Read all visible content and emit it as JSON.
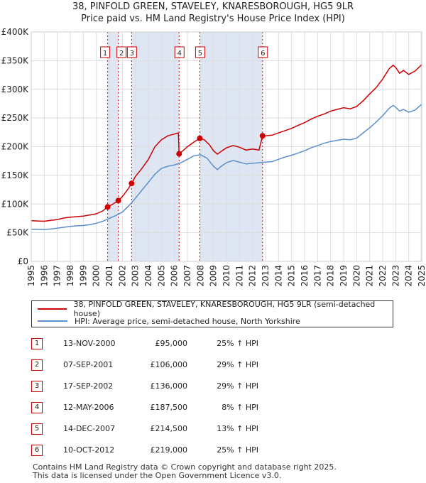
{
  "title_line1": "38, PINFOLD GREEN, STAVELEY, KNARESBOROUGH, HG5 9LR",
  "title_line2": "Price paid vs. HM Land Registry's House Price Index (HPI)",
  "colors": {
    "property": "#cc0000",
    "hpi": "#5b8fce",
    "shade": "#dfe6f3",
    "grid": "#dddddd",
    "marker_line": "#cc0000"
  },
  "chart_data": {
    "type": "line",
    "xlim": [
      1995,
      2025
    ],
    "ylim": [
      0,
      400000
    ],
    "y_ticks": [
      {
        "value": 0,
        "label": "£0"
      },
      {
        "value": 50000,
        "label": "£50K"
      },
      {
        "value": 100000,
        "label": "£100K"
      },
      {
        "value": 150000,
        "label": "£150K"
      },
      {
        "value": 200000,
        "label": "£200K"
      },
      {
        "value": 250000,
        "label": "£250K"
      },
      {
        "value": 300000,
        "label": "£300K"
      },
      {
        "value": 350000,
        "label": "£350K"
      },
      {
        "value": 400000,
        "label": "£400K"
      }
    ],
    "x_ticks": [
      1995,
      1996,
      1997,
      1998,
      1999,
      2000,
      2001,
      2002,
      2003,
      2004,
      2005,
      2006,
      2007,
      2008,
      2009,
      2010,
      2011,
      2012,
      2013,
      2014,
      2015,
      2016,
      2017,
      2018,
      2019,
      2020,
      2021,
      2022,
      2023,
      2024,
      2025
    ],
    "shaded_ranges": [
      [
        2000.87,
        2001.69
      ],
      [
        2002.71,
        2006.36
      ],
      [
        2007.95,
        2012.77
      ],
      [
        2024.92,
        2025.0
      ]
    ],
    "series": [
      {
        "name": "38, PINFOLD GREEN, STAVELEY, KNARESBOROUGH, HG5 9LR (semi-detached house)",
        "color": "#cc0000",
        "points": [
          [
            1995.0,
            71000
          ],
          [
            1995.5,
            70500
          ],
          [
            1996.0,
            70000
          ],
          [
            1996.5,
            71500
          ],
          [
            1997.0,
            73000
          ],
          [
            1997.5,
            75500
          ],
          [
            1998.0,
            77000
          ],
          [
            1998.5,
            78000
          ],
          [
            1999.0,
            79000
          ],
          [
            1999.5,
            81000
          ],
          [
            2000.0,
            83000
          ],
          [
            2000.5,
            88000
          ],
          [
            2000.87,
            95000
          ],
          [
            2001.2,
            99000
          ],
          [
            2001.69,
            106000
          ],
          [
            2002.0,
            113000
          ],
          [
            2002.4,
            125000
          ],
          [
            2002.71,
            136000
          ],
          [
            2003.0,
            148000
          ],
          [
            2003.5,
            162000
          ],
          [
            2004.0,
            178000
          ],
          [
            2004.5,
            200000
          ],
          [
            2005.0,
            212000
          ],
          [
            2005.5,
            219000
          ],
          [
            2006.0,
            222000
          ],
          [
            2006.3,
            224000
          ],
          [
            2006.36,
            187500
          ],
          [
            2006.6,
            192000
          ],
          [
            2007.0,
            200000
          ],
          [
            2007.5,
            208000
          ],
          [
            2007.95,
            214500
          ],
          [
            2008.3,
            212000
          ],
          [
            2008.7,
            203000
          ],
          [
            2009.0,
            193000
          ],
          [
            2009.3,
            187000
          ],
          [
            2009.6,
            192000
          ],
          [
            2010.0,
            198000
          ],
          [
            2010.5,
            202000
          ],
          [
            2011.0,
            199000
          ],
          [
            2011.5,
            194000
          ],
          [
            2012.0,
            196000
          ],
          [
            2012.5,
            194000
          ],
          [
            2012.77,
            219000
          ],
          [
            2013.0,
            219000
          ],
          [
            2013.5,
            220000
          ],
          [
            2014.0,
            224000
          ],
          [
            2014.5,
            228000
          ],
          [
            2015.0,
            232000
          ],
          [
            2015.5,
            237000
          ],
          [
            2016.0,
            242000
          ],
          [
            2016.5,
            248000
          ],
          [
            2017.0,
            253000
          ],
          [
            2017.5,
            257000
          ],
          [
            2018.0,
            262000
          ],
          [
            2018.5,
            265000
          ],
          [
            2019.0,
            268000
          ],
          [
            2019.5,
            266000
          ],
          [
            2020.0,
            270000
          ],
          [
            2020.5,
            280000
          ],
          [
            2021.0,
            292000
          ],
          [
            2021.5,
            303000
          ],
          [
            2022.0,
            318000
          ],
          [
            2022.5,
            336000
          ],
          [
            2022.8,
            342000
          ],
          [
            2023.0,
            338000
          ],
          [
            2023.3,
            328000
          ],
          [
            2023.6,
            333000
          ],
          [
            2024.0,
            326000
          ],
          [
            2024.5,
            332000
          ],
          [
            2025.0,
            343000
          ]
        ]
      },
      {
        "name": "HPI: Average price, semi-detached house, North Yorkshire",
        "color": "#5b8fce",
        "points": [
          [
            1995.0,
            56000
          ],
          [
            1995.5,
            55800
          ],
          [
            1996.0,
            55500
          ],
          [
            1996.5,
            56500
          ],
          [
            1997.0,
            58000
          ],
          [
            1997.5,
            59500
          ],
          [
            1998.0,
            61000
          ],
          [
            1998.5,
            62000
          ],
          [
            1999.0,
            62500
          ],
          [
            1999.5,
            64000
          ],
          [
            2000.0,
            66500
          ],
          [
            2000.5,
            70000
          ],
          [
            2001.0,
            75000
          ],
          [
            2001.5,
            80000
          ],
          [
            2002.0,
            86000
          ],
          [
            2002.5,
            97000
          ],
          [
            2003.0,
            110000
          ],
          [
            2003.5,
            124000
          ],
          [
            2004.0,
            138000
          ],
          [
            2004.5,
            152000
          ],
          [
            2005.0,
            162000
          ],
          [
            2005.5,
            166000
          ],
          [
            2006.0,
            168000
          ],
          [
            2006.5,
            172000
          ],
          [
            2007.0,
            178000
          ],
          [
            2007.5,
            184000
          ],
          [
            2008.0,
            186000
          ],
          [
            2008.5,
            180000
          ],
          [
            2009.0,
            166000
          ],
          [
            2009.3,
            160000
          ],
          [
            2009.6,
            166000
          ],
          [
            2010.0,
            172000
          ],
          [
            2010.5,
            176000
          ],
          [
            2011.0,
            173000
          ],
          [
            2011.5,
            170000
          ],
          [
            2012.0,
            171000
          ],
          [
            2012.5,
            172000
          ],
          [
            2013.0,
            173000
          ],
          [
            2013.5,
            174000
          ],
          [
            2014.0,
            178000
          ],
          [
            2014.5,
            182000
          ],
          [
            2015.0,
            185000
          ],
          [
            2015.5,
            189000
          ],
          [
            2016.0,
            193000
          ],
          [
            2016.5,
            198000
          ],
          [
            2017.0,
            202000
          ],
          [
            2017.5,
            206000
          ],
          [
            2018.0,
            209000
          ],
          [
            2018.5,
            211000
          ],
          [
            2019.0,
            213000
          ],
          [
            2019.5,
            212000
          ],
          [
            2020.0,
            215000
          ],
          [
            2020.5,
            224000
          ],
          [
            2021.0,
            233000
          ],
          [
            2021.5,
            243000
          ],
          [
            2022.0,
            254000
          ],
          [
            2022.5,
            267000
          ],
          [
            2022.8,
            272000
          ],
          [
            2023.0,
            269000
          ],
          [
            2023.3,
            262000
          ],
          [
            2023.6,
            265000
          ],
          [
            2024.0,
            260000
          ],
          [
            2024.5,
            264000
          ],
          [
            2025.0,
            274000
          ]
        ]
      }
    ],
    "sales": [
      {
        "num": "1",
        "x": 2000.87,
        "price_value": 95000
      },
      {
        "num": "2",
        "x": 2001.69,
        "price_value": 106000
      },
      {
        "num": "3",
        "x": 2002.71,
        "price_value": 136000
      },
      {
        "num": "4",
        "x": 2006.36,
        "price_value": 187500
      },
      {
        "num": "5",
        "x": 2007.95,
        "price_value": 214500
      },
      {
        "num": "6",
        "x": 2012.77,
        "price_value": 219000
      }
    ]
  },
  "legend": {
    "property_label": "38, PINFOLD GREEN, STAVELEY, KNARESBOROUGH, HG5 9LR (semi-detached house)",
    "hpi_label": "HPI: Average price, semi-detached house, North Yorkshire"
  },
  "sales_table": [
    {
      "num": "1",
      "date": "13-NOV-2000",
      "price": "£95,000",
      "hpi": "25% ↑ HPI"
    },
    {
      "num": "2",
      "date": "07-SEP-2001",
      "price": "£106,000",
      "hpi": "29% ↑ HPI"
    },
    {
      "num": "3",
      "date": "17-SEP-2002",
      "price": "£136,000",
      "hpi": "29% ↑ HPI"
    },
    {
      "num": "4",
      "date": "12-MAY-2006",
      "price": "£187,500",
      "hpi": "8% ↑ HPI"
    },
    {
      "num": "5",
      "date": "14-DEC-2007",
      "price": "£214,500",
      "hpi": "13% ↑ HPI"
    },
    {
      "num": "6",
      "date": "10-OCT-2012",
      "price": "£219,000",
      "hpi": "25% ↑ HPI"
    }
  ],
  "footer_line1": "Contains HM Land Registry data © Crown copyright and database right 2025.",
  "footer_line2": "This data is licensed under the Open Government Licence v3.0."
}
